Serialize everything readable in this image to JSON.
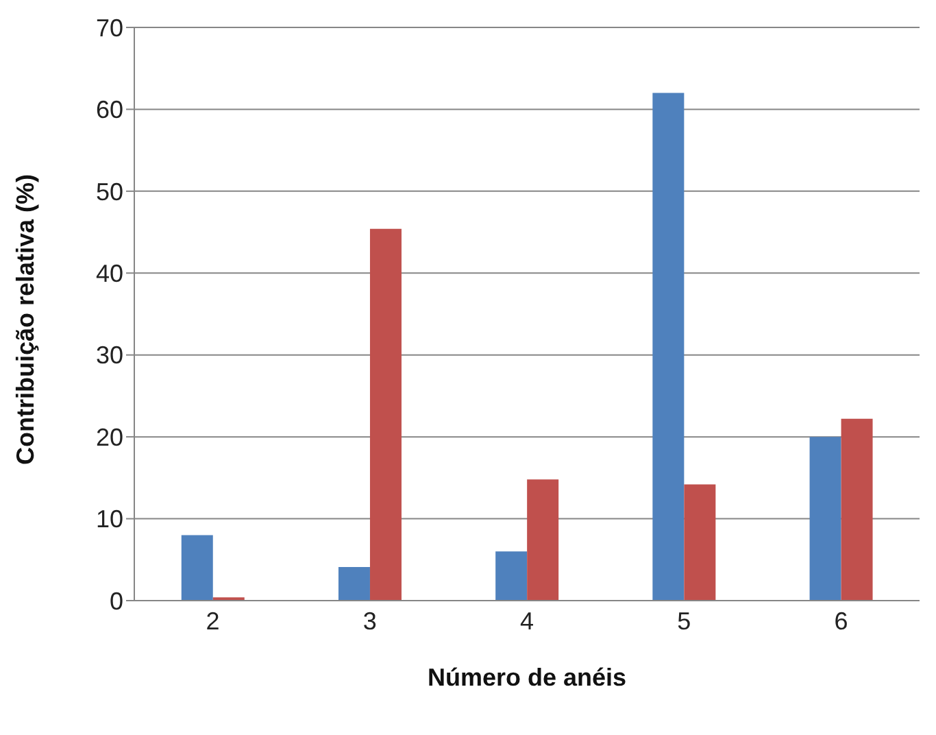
{
  "chart_data": {
    "type": "bar",
    "xlabel": "Número de anéis",
    "ylabel": "Contribuição relativa (%)",
    "categories": [
      "2",
      "3",
      "4",
      "5",
      "6"
    ],
    "series": [
      {
        "color": "#4f81bd",
        "values": [
          8,
          4.1,
          6,
          62,
          20
        ]
      },
      {
        "color": "#c0504d",
        "values": [
          0.4,
          45.4,
          14.8,
          14.2,
          22.2
        ]
      }
    ],
    "ylim": [
      0,
      70
    ],
    "yticks": [
      0,
      10,
      20,
      30,
      40,
      50,
      60,
      70
    ],
    "grid": "y",
    "legend": false
  }
}
